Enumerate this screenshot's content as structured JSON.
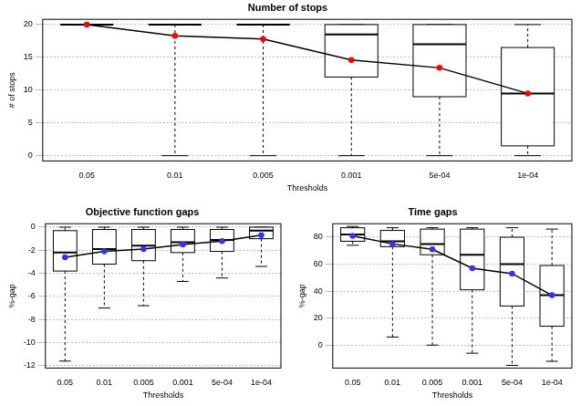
{
  "chart_data": [
    {
      "type": "box",
      "title": "Number of stops",
      "x_label": "Thresholds",
      "y_label": "# of stops",
      "categories": [
        "0.05",
        "0.01",
        "0.005",
        "0.001",
        "5e-04",
        "1e-04"
      ],
      "boxes": {
        "min": [
          20,
          0,
          0,
          0,
          0,
          0
        ],
        "q1": [
          20,
          20,
          20,
          12,
          9,
          1.5
        ],
        "median": [
          20,
          20,
          20,
          18.5,
          17,
          9.5
        ],
        "q3": [
          20,
          20,
          20,
          20,
          20,
          16.5
        ],
        "max": [
          20,
          20,
          20,
          20,
          20,
          20
        ],
        "color": "#000000",
        "line_style": "dashed"
      },
      "means": {
        "values": [
          20,
          18.3,
          17.8,
          14.6,
          13.4,
          9.5
        ],
        "color": "#000000",
        "colors": [
          "#ff0000",
          "#ff0000",
          "#ff0000",
          "#ff0000",
          "#ff0000",
          "#ff0000"
        ],
        "marker": "circle"
      },
      "ylim": [
        -0.8,
        20.8
      ],
      "yticks": [
        0,
        5,
        10,
        15,
        20
      ],
      "grid": true
    },
    {
      "type": "box",
      "title": "Objective function gaps",
      "x_label": "Thresholds",
      "y_label": "%-gap",
      "categories": [
        "0.05",
        "0.01",
        "0.005",
        "0.001",
        "5e-04",
        "1e-04"
      ],
      "boxes": {
        "min": [
          -11.6,
          -7,
          -6.8,
          -4.7,
          -4.4,
          -3.4
        ],
        "q1": [
          -3.8,
          -3.2,
          -2.9,
          -2.2,
          -2.1,
          -1.0
        ],
        "median": [
          -2.2,
          -1.9,
          -1.6,
          -1.3,
          -1.1,
          -0.3
        ],
        "q3": [
          -0.3,
          -0.2,
          -0.2,
          -0.2,
          -0.2,
          0
        ],
        "max": [
          0,
          0,
          0,
          0,
          0,
          0
        ],
        "color": "#000000",
        "line_style": "dashed"
      },
      "means": {
        "values": [
          -2.6,
          -2.1,
          -1.9,
          -1.5,
          -1.2,
          -0.7
        ],
        "color": "#000000",
        "colors": [
          "#3333ff",
          "#3333ff",
          "#3333ff",
          "#3333ff",
          "#3333ff",
          "#3333ff"
        ],
        "marker": "circle"
      },
      "ylim": [
        -12.2,
        0.3
      ],
      "yticks": [
        -12,
        -10,
        -8,
        -6,
        -4,
        -2,
        0
      ],
      "grid": true
    },
    {
      "type": "box",
      "title": "Time gaps",
      "x_label": "Thresholds",
      "y_label": "%-gap",
      "categories": [
        "0.05",
        "0.01",
        "0.005",
        "0.001",
        "5e-04",
        "1e-04"
      ],
      "boxes": {
        "min": [
          74,
          6,
          0,
          -6,
          -15,
          -12
        ],
        "q1": [
          77,
          73,
          67,
          41,
          29,
          14
        ],
        "median": [
          82,
          77,
          75,
          67,
          60,
          37
        ],
        "q3": [
          87,
          85,
          86,
          86,
          80,
          59
        ],
        "max": [
          88,
          87,
          87,
          87,
          87,
          86
        ],
        "color": "#000000",
        "line_style": "dashed"
      },
      "means": {
        "values": [
          81,
          75,
          71,
          57,
          53,
          37
        ],
        "color": "#000000",
        "colors": [
          "#3333ff",
          "#3333ff",
          "#3333ff",
          "#3333ff",
          "#3333ff",
          "#3333ff"
        ],
        "marker": "circle"
      },
      "ylim": [
        -17,
        90
      ],
      "yticks": [
        0,
        20,
        40,
        60,
        80
      ],
      "grid": true
    }
  ]
}
